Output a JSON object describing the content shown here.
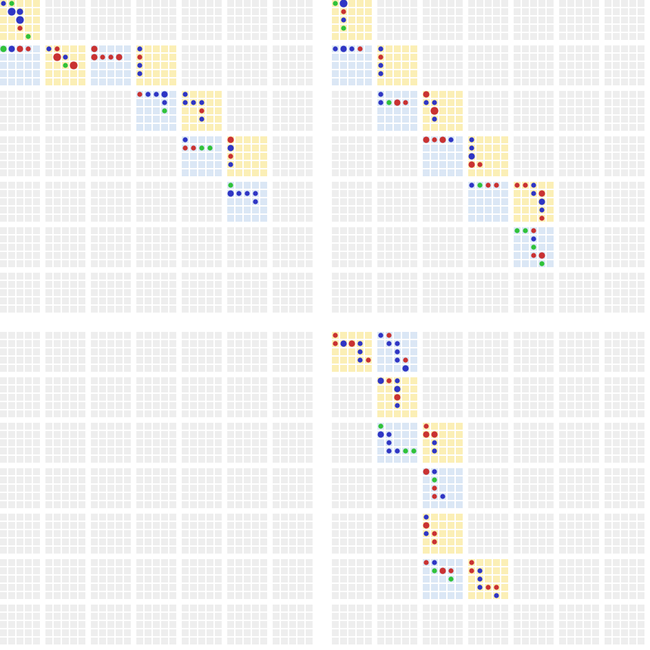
{
  "palette": {
    "empty_cell": "#eeeeee",
    "yellow_cell": "#fbefb6",
    "blue_cell": "#dbe7f5",
    "blue_dot": "#2f36c4",
    "red_dot": "#c93232",
    "green_dot": "#2fc23a"
  },
  "grid": {
    "block_rows": 14,
    "block_cols": 14,
    "cells_per_block": 5
  },
  "tiles": [
    {
      "row": 0,
      "col": 0,
      "color": "yellow",
      "dots": [
        [
          0,
          0,
          "blue",
          "s"
        ],
        [
          0,
          1,
          "green",
          "s"
        ],
        [
          1,
          1,
          "blue",
          "l"
        ],
        [
          1,
          2,
          "blue",
          "m"
        ],
        [
          2,
          2,
          "blue",
          "l"
        ],
        [
          3,
          2,
          "red",
          "s"
        ],
        [
          4,
          3,
          "green",
          "s"
        ]
      ]
    },
    {
      "row": 0,
      "col": 7,
      "color": "yellow",
      "dots": [
        [
          0,
          0,
          "green",
          "s"
        ],
        [
          0,
          1,
          "blue",
          "l"
        ],
        [
          1,
          1,
          "red",
          "s"
        ],
        [
          2,
          1,
          "blue",
          "s"
        ],
        [
          3,
          1,
          "green",
          "s"
        ]
      ]
    },
    {
      "row": 1,
      "col": 0,
      "color": "blue",
      "dots": [
        [
          0,
          0,
          "green",
          "m"
        ],
        [
          0,
          1,
          "blue",
          "m"
        ],
        [
          0,
          2,
          "red",
          "m"
        ],
        [
          0,
          3,
          "red",
          "s"
        ]
      ]
    },
    {
      "row": 1,
      "col": 1,
      "color": "yellow",
      "dots": [
        [
          0,
          0,
          "blue",
          "s"
        ],
        [
          0,
          1,
          "red",
          "s"
        ],
        [
          1,
          1,
          "red",
          "l"
        ],
        [
          1,
          2,
          "blue",
          "s"
        ],
        [
          2,
          2,
          "green",
          "s"
        ],
        [
          2,
          3,
          "red",
          "l"
        ]
      ]
    },
    {
      "row": 1,
      "col": 2,
      "color": "blue",
      "dots": [
        [
          0,
          0,
          "red",
          "m"
        ],
        [
          1,
          0,
          "red",
          "m"
        ],
        [
          1,
          1,
          "red",
          "s"
        ],
        [
          1,
          2,
          "red",
          "s"
        ],
        [
          1,
          3,
          "red",
          "m"
        ]
      ]
    },
    {
      "row": 1,
      "col": 3,
      "color": "yellow",
      "dots": [
        [
          0,
          0,
          "blue",
          "s"
        ],
        [
          1,
          0,
          "red",
          "s"
        ],
        [
          2,
          0,
          "blue",
          "s"
        ],
        [
          3,
          0,
          "blue",
          "s"
        ]
      ]
    },
    {
      "row": 1,
      "col": 7,
      "color": "blue",
      "dots": [
        [
          0,
          0,
          "blue",
          "s"
        ],
        [
          0,
          1,
          "blue",
          "m"
        ],
        [
          0,
          2,
          "blue",
          "s"
        ],
        [
          0,
          3,
          "red",
          "s"
        ]
      ]
    },
    {
      "row": 1,
      "col": 8,
      "color": "yellow",
      "dots": [
        [
          0,
          0,
          "blue",
          "s"
        ],
        [
          1,
          0,
          "red",
          "s"
        ],
        [
          2,
          0,
          "blue",
          "s"
        ],
        [
          3,
          0,
          "blue",
          "s"
        ]
      ]
    },
    {
      "row": 2,
      "col": 3,
      "color": "blue",
      "dots": [
        [
          0,
          0,
          "red",
          "s"
        ],
        [
          0,
          1,
          "blue",
          "s"
        ],
        [
          0,
          2,
          "blue",
          "s"
        ],
        [
          0,
          3,
          "blue",
          "m"
        ],
        [
          1,
          3,
          "blue",
          "s"
        ],
        [
          2,
          3,
          "green",
          "s"
        ]
      ]
    },
    {
      "row": 2,
      "col": 4,
      "color": "yellow",
      "dots": [
        [
          0,
          0,
          "blue",
          "s"
        ],
        [
          1,
          0,
          "blue",
          "s"
        ],
        [
          1,
          1,
          "blue",
          "s"
        ],
        [
          1,
          2,
          "blue",
          "s"
        ],
        [
          2,
          2,
          "red",
          "s"
        ],
        [
          3,
          2,
          "blue",
          "s"
        ]
      ]
    },
    {
      "row": 2,
      "col": 8,
      "color": "blue",
      "dots": [
        [
          0,
          0,
          "blue",
          "s"
        ],
        [
          1,
          0,
          "blue",
          "s"
        ],
        [
          1,
          1,
          "green",
          "s"
        ],
        [
          1,
          2,
          "red",
          "m"
        ],
        [
          1,
          3,
          "red",
          "s"
        ]
      ]
    },
    {
      "row": 2,
      "col": 9,
      "color": "yellow",
      "dots": [
        [
          0,
          0,
          "red",
          "m"
        ],
        [
          1,
          0,
          "blue",
          "s"
        ],
        [
          1,
          1,
          "blue",
          "s"
        ],
        [
          2,
          1,
          "red",
          "l"
        ],
        [
          3,
          1,
          "blue",
          "s"
        ]
      ]
    },
    {
      "row": 3,
      "col": 4,
      "color": "blue",
      "dots": [
        [
          0,
          0,
          "blue",
          "s"
        ],
        [
          1,
          0,
          "red",
          "s"
        ],
        [
          1,
          1,
          "red",
          "s"
        ],
        [
          1,
          2,
          "green",
          "s"
        ],
        [
          1,
          3,
          "green",
          "s"
        ]
      ]
    },
    {
      "row": 3,
      "col": 5,
      "color": "yellow",
      "dots": [
        [
          0,
          0,
          "red",
          "m"
        ],
        [
          1,
          0,
          "blue",
          "m"
        ],
        [
          2,
          0,
          "red",
          "s"
        ],
        [
          3,
          0,
          "blue",
          "s"
        ]
      ]
    },
    {
      "row": 3,
      "col": 9,
      "color": "blue",
      "dots": [
        [
          0,
          0,
          "red",
          "m"
        ],
        [
          0,
          1,
          "red",
          "s"
        ],
        [
          0,
          2,
          "red",
          "m"
        ],
        [
          0,
          3,
          "blue",
          "s"
        ]
      ]
    },
    {
      "row": 3,
      "col": 10,
      "color": "yellow",
      "dots": [
        [
          0,
          0,
          "blue",
          "s"
        ],
        [
          1,
          0,
          "blue",
          "s"
        ],
        [
          2,
          0,
          "blue",
          "m"
        ],
        [
          3,
          0,
          "red",
          "m"
        ],
        [
          3,
          1,
          "red",
          "s"
        ]
      ]
    },
    {
      "row": 4,
      "col": 5,
      "color": "blue",
      "dots": [
        [
          0,
          0,
          "green",
          "s"
        ],
        [
          1,
          0,
          "blue",
          "m"
        ],
        [
          1,
          1,
          "blue",
          "s"
        ],
        [
          1,
          2,
          "blue",
          "s"
        ],
        [
          1,
          3,
          "blue",
          "s"
        ],
        [
          2,
          3,
          "blue",
          "s"
        ]
      ]
    },
    {
      "row": 4,
      "col": 10,
      "color": "blue",
      "dots": [
        [
          0,
          0,
          "blue",
          "s"
        ],
        [
          0,
          1,
          "green",
          "s"
        ],
        [
          0,
          2,
          "red",
          "s"
        ],
        [
          0,
          3,
          "red",
          "s"
        ]
      ]
    },
    {
      "row": 4,
      "col": 11,
      "color": "yellow",
      "dots": [
        [
          0,
          0,
          "red",
          "s"
        ],
        [
          0,
          1,
          "red",
          "s"
        ],
        [
          0,
          2,
          "blue",
          "s"
        ],
        [
          1,
          2,
          "blue",
          "s"
        ],
        [
          1,
          3,
          "red",
          "m"
        ],
        [
          2,
          3,
          "blue",
          "m"
        ],
        [
          3,
          3,
          "blue",
          "s"
        ],
        [
          4,
          3,
          "red",
          "s"
        ]
      ]
    },
    {
      "row": 5,
      "col": 11,
      "color": "blue",
      "dots": [
        [
          0,
          0,
          "green",
          "s"
        ],
        [
          0,
          1,
          "green",
          "s"
        ],
        [
          0,
          2,
          "red",
          "s"
        ],
        [
          1,
          2,
          "blue",
          "s"
        ],
        [
          2,
          2,
          "green",
          "s"
        ],
        [
          3,
          2,
          "red",
          "s"
        ],
        [
          3,
          3,
          "red",
          "m"
        ],
        [
          4,
          3,
          "green",
          "s"
        ]
      ]
    },
    {
      "row": 7,
      "col": 7,
      "color": "yellow",
      "dots": [
        [
          0,
          0,
          "red",
          "s"
        ],
        [
          1,
          0,
          "red",
          "s"
        ],
        [
          1,
          1,
          "blue",
          "m"
        ],
        [
          1,
          2,
          "red",
          "m"
        ],
        [
          1,
          3,
          "blue",
          "s"
        ],
        [
          2,
          3,
          "blue",
          "s"
        ],
        [
          3,
          3,
          "blue",
          "s"
        ],
        [
          3,
          4,
          "red",
          "s"
        ]
      ]
    },
    {
      "row": 7,
      "col": 8,
      "color": "blue",
      "dots": [
        [
          0,
          0,
          "blue",
          "s"
        ],
        [
          0,
          1,
          "red",
          "s"
        ],
        [
          1,
          1,
          "blue",
          "s"
        ],
        [
          1,
          2,
          "blue",
          "s"
        ],
        [
          2,
          2,
          "blue",
          "s"
        ],
        [
          3,
          2,
          "blue",
          "s"
        ],
        [
          3,
          3,
          "red",
          "s"
        ],
        [
          4,
          3,
          "blue",
          "m"
        ]
      ]
    },
    {
      "row": 8,
      "col": 8,
      "color": "yellow",
      "dots": [
        [
          0,
          0,
          "blue",
          "m"
        ],
        [
          0,
          1,
          "red",
          "s"
        ],
        [
          0,
          2,
          "blue",
          "s"
        ],
        [
          1,
          2,
          "blue",
          "m"
        ],
        [
          2,
          2,
          "red",
          "m"
        ],
        [
          3,
          2,
          "blue",
          "s"
        ]
      ]
    },
    {
      "row": 9,
      "col": 8,
      "color": "blue",
      "dots": [
        [
          0,
          0,
          "green",
          "s"
        ],
        [
          1,
          0,
          "blue",
          "m"
        ],
        [
          1,
          1,
          "blue",
          "s"
        ],
        [
          2,
          1,
          "blue",
          "s"
        ],
        [
          3,
          1,
          "blue",
          "s"
        ],
        [
          3,
          2,
          "blue",
          "s"
        ],
        [
          3,
          3,
          "green",
          "s"
        ],
        [
          3,
          4,
          "green",
          "s"
        ]
      ]
    },
    {
      "row": 9,
      "col": 9,
      "color": "yellow",
      "dots": [
        [
          0,
          0,
          "red",
          "s"
        ],
        [
          1,
          0,
          "red",
          "m"
        ],
        [
          1,
          1,
          "red",
          "m"
        ],
        [
          2,
          1,
          "blue",
          "s"
        ],
        [
          3,
          1,
          "blue",
          "s"
        ]
      ]
    },
    {
      "row": 10,
      "col": 9,
      "color": "blue",
      "dots": [
        [
          0,
          0,
          "red",
          "m"
        ],
        [
          0,
          1,
          "blue",
          "s"
        ],
        [
          1,
          1,
          "green",
          "s"
        ],
        [
          2,
          1,
          "red",
          "s"
        ],
        [
          3,
          1,
          "red",
          "s"
        ],
        [
          3,
          2,
          "blue",
          "s"
        ]
      ]
    },
    {
      "row": 11,
      "col": 9,
      "color": "yellow",
      "dots": [
        [
          0,
          0,
          "blue",
          "s"
        ],
        [
          1,
          0,
          "red",
          "m"
        ],
        [
          2,
          0,
          "blue",
          "s"
        ],
        [
          2,
          1,
          "red",
          "s"
        ],
        [
          3,
          1,
          "red",
          "s"
        ]
      ]
    },
    {
      "row": 12,
      "col": 9,
      "color": "blue",
      "dots": [
        [
          0,
          0,
          "red",
          "s"
        ],
        [
          0,
          1,
          "blue",
          "s"
        ],
        [
          1,
          1,
          "green",
          "s"
        ],
        [
          1,
          2,
          "red",
          "m"
        ],
        [
          1,
          3,
          "red",
          "s"
        ],
        [
          2,
          3,
          "green",
          "s"
        ]
      ]
    },
    {
      "row": 12,
      "col": 10,
      "color": "yellow",
      "dots": [
        [
          0,
          0,
          "red",
          "s"
        ],
        [
          1,
          0,
          "red",
          "s"
        ],
        [
          1,
          1,
          "blue",
          "s"
        ],
        [
          2,
          1,
          "blue",
          "s"
        ],
        [
          3,
          1,
          "blue",
          "s"
        ],
        [
          3,
          2,
          "red",
          "s"
        ],
        [
          3,
          3,
          "red",
          "s"
        ],
        [
          4,
          3,
          "blue",
          "s"
        ]
      ]
    }
  ]
}
